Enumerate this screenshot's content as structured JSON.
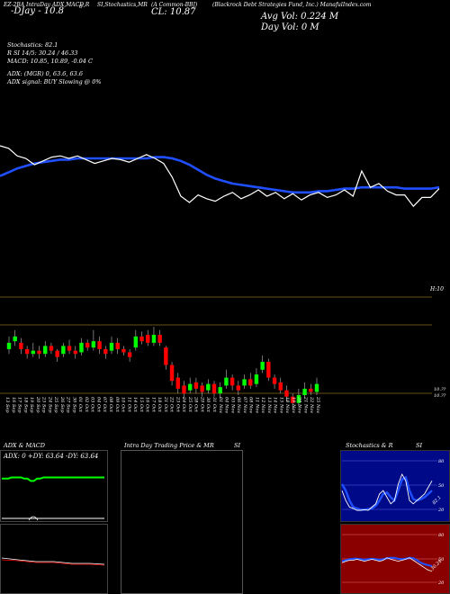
{
  "header": {
    "t1": "EZ-2BA IntraDay ADX,MACD,R",
    "t1_sub": "-DJay - 10.8",
    "t2": "SI,Stochastics,MR",
    "t2_n": "6",
    "t3": "(A Common-BBJ)",
    "cl": "CL: 10.87",
    "company": "(Blackrock Debt Strategies Fund, Inc.) ManafulIndex.com",
    "avg_vol": "Avg Vol: 0.224  M",
    "day_vol": "Day Vol: 0   M"
  },
  "indicators": {
    "stoch": "Stochastics: 82.1",
    "r_si": "R                SI 14/5: 30.24  / 46.33",
    "macd": "MACD: 10.85,  10.89, -0.04  C",
    "adx": "ADX:                              (MGR) 0,  63.6,  63.6",
    "adx_signal": "ADX  signal:                        BUY Slowing @ 0%"
  },
  "price_label": "H:10",
  "low_label": "10.??",
  "low_label2": "10.??",
  "dates": [
    "13 Sep",
    "16 Sep",
    "17 Sep",
    "18 Sep",
    "19 Sep",
    "20 Sep",
    "23 Sep",
    "24 Sep",
    "25 Sep",
    "26 Sep",
    "27 Sep",
    "30 Sep",
    "01 Oct",
    "02 Oct",
    "03 Oct",
    "04 Oct",
    "07 Oct",
    "08 Oct",
    "09 Oct",
    "10 Oct",
    "11 Oct",
    "14 Oct",
    "15 Oct",
    "16 Oct",
    "17 Oct",
    "18 Oct",
    "21 Oct",
    "22 Oct",
    "23 Oct",
    "24 Oct",
    "25 Oct",
    "28 Oct",
    "29 Oct",
    "30 Oct",
    "31 Oct",
    "01 Nov",
    "04 Nov",
    "05 Nov",
    "06 Nov",
    "07 Nov",
    "08 Nov",
    "11 Nov",
    "12 Nov",
    "13 Nov",
    "14 Nov",
    "15 Nov",
    "18 Nov",
    "19 Nov",
    "20 Nov",
    "21 Nov",
    "22 Nov",
    "25 Nov"
  ],
  "panels": {
    "adx_title": "ADX  & MACD",
    "adx_readout": "ADX: 0   +DY: 63.64  -DY: 63.64",
    "intra_title": "Intra  Day Trading Price  & MR",
    "intra_si": "SI",
    "stoch_title": "Stochastics & R",
    "stoch_si": "SI",
    "stoch_ticks": [
      "80",
      "50",
      "20"
    ],
    "stoch_val": "82.1",
    "rsi_ticks": [
      "80",
      "50",
      "20"
    ],
    "rsi_val": "30.24"
  },
  "colors": {
    "up": "#00ff00",
    "down": "#ff0000",
    "ma": "#1f4fff",
    "grid": "#8b6a1a"
  },
  "chart_data": {
    "type": "candlestick",
    "title": "",
    "categories_ref": "dates",
    "close_white_line": [
      0.7,
      0.68,
      0.62,
      0.6,
      0.55,
      0.58,
      0.61,
      0.62,
      0.6,
      0.62,
      0.59,
      0.56,
      0.58,
      0.6,
      0.59,
      0.57,
      0.6,
      0.63,
      0.6,
      0.56,
      0.45,
      0.3,
      0.25,
      0.31,
      0.28,
      0.26,
      0.3,
      0.33,
      0.28,
      0.31,
      0.35,
      0.3,
      0.33,
      0.28,
      0.32,
      0.27,
      0.31,
      0.33,
      0.29,
      0.31,
      0.35,
      0.3,
      0.5,
      0.37,
      0.4,
      0.34,
      0.31,
      0.31,
      0.22,
      0.29,
      0.29,
      0.36
    ],
    "ma_blue_line": [
      0.46,
      0.49,
      0.52,
      0.54,
      0.56,
      0.57,
      0.58,
      0.59,
      0.59,
      0.6,
      0.6,
      0.6,
      0.6,
      0.6,
      0.6,
      0.6,
      0.6,
      0.6,
      0.61,
      0.61,
      0.6,
      0.58,
      0.55,
      0.51,
      0.47,
      0.44,
      0.42,
      0.4,
      0.39,
      0.38,
      0.37,
      0.36,
      0.35,
      0.34,
      0.33,
      0.33,
      0.33,
      0.34,
      0.34,
      0.35,
      0.36,
      0.36,
      0.37,
      0.37,
      0.37,
      0.37,
      0.37,
      0.36,
      0.36,
      0.36,
      0.36,
      0.37
    ],
    "candles": [
      {
        "o": 0.58,
        "c": 0.62,
        "h": 0.66,
        "l": 0.55
      },
      {
        "o": 0.63,
        "c": 0.66,
        "h": 0.7,
        "l": 0.6
      },
      {
        "o": 0.62,
        "c": 0.58,
        "h": 0.65,
        "l": 0.55
      },
      {
        "o": 0.58,
        "c": 0.55,
        "h": 0.6,
        "l": 0.52
      },
      {
        "o": 0.55,
        "c": 0.57,
        "h": 0.62,
        "l": 0.53
      },
      {
        "o": 0.57,
        "c": 0.55,
        "h": 0.6,
        "l": 0.52
      },
      {
        "o": 0.55,
        "c": 0.6,
        "h": 0.63,
        "l": 0.53
      },
      {
        "o": 0.6,
        "c": 0.57,
        "h": 0.62,
        "l": 0.55
      },
      {
        "o": 0.57,
        "c": 0.53,
        "h": 0.58,
        "l": 0.5
      },
      {
        "o": 0.55,
        "c": 0.6,
        "h": 0.62,
        "l": 0.53
      },
      {
        "o": 0.6,
        "c": 0.57,
        "h": 0.64,
        "l": 0.55
      },
      {
        "o": 0.57,
        "c": 0.55,
        "h": 0.6,
        "l": 0.52
      },
      {
        "o": 0.56,
        "c": 0.62,
        "h": 0.65,
        "l": 0.54
      },
      {
        "o": 0.62,
        "c": 0.59,
        "h": 0.64,
        "l": 0.57
      },
      {
        "o": 0.59,
        "c": 0.63,
        "h": 0.7,
        "l": 0.57
      },
      {
        "o": 0.63,
        "c": 0.58,
        "h": 0.66,
        "l": 0.55
      },
      {
        "o": 0.58,
        "c": 0.55,
        "h": 0.6,
        "l": 0.52
      },
      {
        "o": 0.57,
        "c": 0.62,
        "h": 0.66,
        "l": 0.55
      },
      {
        "o": 0.62,
        "c": 0.58,
        "h": 0.65,
        "l": 0.55
      },
      {
        "o": 0.58,
        "c": 0.56,
        "h": 0.6,
        "l": 0.54
      },
      {
        "o": 0.56,
        "c": 0.53,
        "h": 0.58,
        "l": 0.5
      },
      {
        "o": 0.59,
        "c": 0.66,
        "h": 0.7,
        "l": 0.57
      },
      {
        "o": 0.66,
        "c": 0.63,
        "h": 0.69,
        "l": 0.61
      },
      {
        "o": 0.67,
        "c": 0.62,
        "h": 0.7,
        "l": 0.6
      },
      {
        "o": 0.62,
        "c": 0.67,
        "h": 0.72,
        "l": 0.6
      },
      {
        "o": 0.67,
        "c": 0.62,
        "h": 0.7,
        "l": 0.6
      },
      {
        "o": 0.59,
        "c": 0.48,
        "h": 0.6,
        "l": 0.45
      },
      {
        "o": 0.48,
        "c": 0.38,
        "h": 0.5,
        "l": 0.35
      },
      {
        "o": 0.4,
        "c": 0.33,
        "h": 0.43,
        "l": 0.3
      },
      {
        "o": 0.35,
        "c": 0.3,
        "h": 0.38,
        "l": 0.27
      },
      {
        "o": 0.32,
        "c": 0.36,
        "h": 0.4,
        "l": 0.3
      },
      {
        "o": 0.37,
        "c": 0.33,
        "h": 0.4,
        "l": 0.3
      },
      {
        "o": 0.35,
        "c": 0.31,
        "h": 0.37,
        "l": 0.28
      },
      {
        "o": 0.32,
        "c": 0.36,
        "h": 0.39,
        "l": 0.3
      },
      {
        "o": 0.36,
        "c": 0.3,
        "h": 0.38,
        "l": 0.28
      },
      {
        "o": 0.3,
        "c": 0.34,
        "h": 0.37,
        "l": 0.27
      },
      {
        "o": 0.35,
        "c": 0.4,
        "h": 0.45,
        "l": 0.33
      },
      {
        "o": 0.4,
        "c": 0.35,
        "h": 0.42,
        "l": 0.32
      },
      {
        "o": 0.35,
        "c": 0.32,
        "h": 0.38,
        "l": 0.29
      },
      {
        "o": 0.35,
        "c": 0.39,
        "h": 0.42,
        "l": 0.33
      },
      {
        "o": 0.39,
        "c": 0.35,
        "h": 0.43,
        "l": 0.33
      },
      {
        "o": 0.36,
        "c": 0.42,
        "h": 0.46,
        "l": 0.34
      },
      {
        "o": 0.45,
        "c": 0.5,
        "h": 0.54,
        "l": 0.43
      },
      {
        "o": 0.5,
        "c": 0.4,
        "h": 0.52,
        "l": 0.38
      },
      {
        "o": 0.4,
        "c": 0.36,
        "h": 0.42,
        "l": 0.33
      },
      {
        "o": 0.37,
        "c": 0.32,
        "h": 0.4,
        "l": 0.3
      },
      {
        "o": 0.32,
        "c": 0.28,
        "h": 0.35,
        "l": 0.25
      },
      {
        "o": 0.28,
        "c": 0.24,
        "h": 0.3,
        "l": 0.2
      },
      {
        "o": 0.24,
        "c": 0.29,
        "h": 0.33,
        "l": 0.22
      },
      {
        "o": 0.29,
        "c": 0.33,
        "h": 0.37,
        "l": 0.27
      },
      {
        "o": 0.33,
        "c": 0.31,
        "h": 0.36,
        "l": 0.29
      },
      {
        "o": 0.31,
        "c": 0.36,
        "h": 0.4,
        "l": 0.29
      }
    ],
    "adx_green": [
      0.7,
      0.7,
      0.7,
      0.72,
      0.72,
      0.72,
      0.72,
      0.7,
      0.7,
      0.66,
      0.66,
      0.7,
      0.7,
      0.72,
      0.72,
      0.72,
      0.72,
      0.72,
      0.72,
      0.72,
      0.72,
      0.72,
      0.72,
      0.72,
      0.72,
      0.72,
      0.72,
      0.72,
      0.72,
      0.72,
      0.72,
      0.72,
      0.72
    ],
    "stoch_white": [
      0.45,
      0.3,
      0.2,
      0.18,
      0.15,
      0.15,
      0.16,
      0.15,
      0.2,
      0.25,
      0.4,
      0.45,
      0.35,
      0.25,
      0.3,
      0.55,
      0.7,
      0.6,
      0.3,
      0.25,
      0.3,
      0.35,
      0.4,
      0.5,
      0.6
    ],
    "stoch_blue": [
      0.55,
      0.45,
      0.3,
      0.2,
      0.18,
      0.16,
      0.16,
      0.17,
      0.18,
      0.22,
      0.3,
      0.4,
      0.42,
      0.35,
      0.3,
      0.45,
      0.62,
      0.65,
      0.45,
      0.32,
      0.3,
      0.32,
      0.35,
      0.4,
      0.45
    ],
    "rsi_white": [
      0.45,
      0.48,
      0.5,
      0.5,
      0.52,
      0.5,
      0.48,
      0.5,
      0.52,
      0.5,
      0.48,
      0.5,
      0.55,
      0.52,
      0.5,
      0.48,
      0.5,
      0.52,
      0.55,
      0.5,
      0.45,
      0.4,
      0.35,
      0.3,
      0.28
    ],
    "rsi_blue": [
      0.48,
      0.5,
      0.52,
      0.53,
      0.53,
      0.52,
      0.51,
      0.52,
      0.53,
      0.52,
      0.51,
      0.52,
      0.54,
      0.55,
      0.55,
      0.53,
      0.52,
      0.53,
      0.55,
      0.54,
      0.5,
      0.45,
      0.42,
      0.4,
      0.38
    ]
  }
}
